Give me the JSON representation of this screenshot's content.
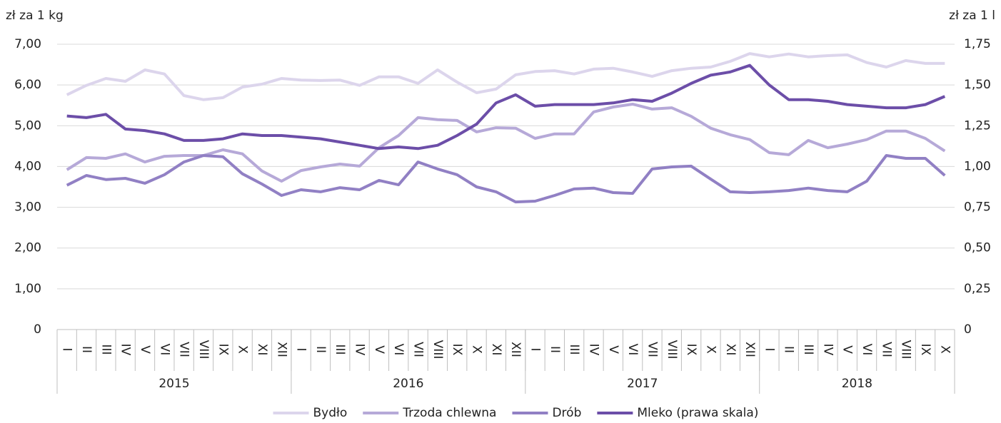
{
  "chart_data": {
    "type": "line",
    "y_label": "zł za 1 kg",
    "y2_label": "zł za 1 l",
    "categories": [
      "I",
      "II",
      "III",
      "IV",
      "V",
      "VI",
      "VII",
      "VIII",
      "IX",
      "X",
      "XI",
      "XII",
      "I",
      "II",
      "III",
      "IV",
      "V",
      "VI",
      "VII",
      "VIII",
      "IX",
      "X",
      "XI",
      "XII",
      "I",
      "II",
      "III",
      "IV",
      "V",
      "VI",
      "VII",
      "VIII",
      "IX",
      "X",
      "XI",
      "XII",
      "I",
      "II",
      "III",
      "IV",
      "V",
      "VI",
      "VII",
      "VIII",
      "IX",
      "X"
    ],
    "groups": [
      {
        "label": "2015",
        "size": 12
      },
      {
        "label": "2016",
        "size": 12
      },
      {
        "label": "2017",
        "size": 12
      },
      {
        "label": "2018",
        "size": 10
      }
    ],
    "ylim": [
      0,
      7
    ],
    "yticks": [
      0,
      {
        "value": 1,
        "label": "1,00"
      },
      {
        "value": 2,
        "label": "2,00"
      },
      {
        "value": 3,
        "label": "3,00"
      },
      {
        "value": 4,
        "label": "4,00"
      },
      {
        "value": 5,
        "label": "5,00"
      },
      {
        "value": 6,
        "label": "6,00"
      },
      {
        "value": 7,
        "label": "7,00"
      }
    ],
    "y2lim": [
      0,
      1.75
    ],
    "y2ticks": [
      0,
      {
        "value": 0.25,
        "label": "0,25"
      },
      {
        "value": 0.5,
        "label": "0,50"
      },
      {
        "value": 0.75,
        "label": "0,75"
      },
      {
        "value": 1,
        "label": "1,00"
      },
      {
        "value": 1.25,
        "label": "1,25"
      },
      {
        "value": 1.5,
        "label": "1,50"
      },
      {
        "value": 1.75,
        "label": "1,75"
      }
    ],
    "grid": true,
    "legend": "bottom",
    "series": [
      {
        "name": "Bydło",
        "color": "#dcd5ec",
        "values": [
          5.76,
          5.99,
          6.16,
          6.09,
          6.37,
          6.27,
          5.74,
          5.64,
          5.69,
          5.95,
          6.02,
          6.16,
          6.12,
          6.11,
          6.12,
          5.99,
          6.2,
          6.2,
          6.04,
          6.37,
          6.07,
          5.81,
          5.9,
          6.25,
          6.33,
          6.35,
          6.27,
          6.39,
          6.41,
          6.32,
          6.21,
          6.35,
          6.41,
          6.44,
          6.58,
          6.77,
          6.69,
          6.76,
          6.69,
          6.72,
          6.74,
          6.55,
          6.44,
          6.6,
          6.53,
          6.53
        ]
      },
      {
        "name": "Trzoda chlewna",
        "color": "#b6a9d8",
        "values": [
          3.92,
          4.22,
          4.2,
          4.31,
          4.11,
          4.25,
          4.27,
          4.27,
          4.41,
          4.31,
          3.89,
          3.64,
          3.9,
          3.99,
          4.06,
          4.01,
          4.46,
          4.76,
          5.2,
          5.15,
          5.13,
          4.85,
          4.95,
          4.94,
          4.69,
          4.8,
          4.8,
          5.34,
          5.46,
          5.53,
          5.41,
          5.44,
          5.23,
          4.94,
          4.78,
          4.66,
          4.34,
          4.29,
          4.64,
          4.46,
          4.55,
          4.66,
          4.87,
          4.87,
          4.69,
          4.38
        ]
      },
      {
        "name": "Drób",
        "color": "#9180c4",
        "values": [
          3.54,
          3.78,
          3.68,
          3.71,
          3.59,
          3.8,
          4.11,
          4.27,
          4.24,
          3.82,
          3.57,
          3.29,
          3.43,
          3.38,
          3.48,
          3.43,
          3.66,
          3.55,
          4.11,
          3.94,
          3.8,
          3.5,
          3.38,
          3.13,
          3.15,
          3.29,
          3.45,
          3.47,
          3.36,
          3.34,
          3.94,
          3.99,
          4.01,
          3.69,
          3.38,
          3.36,
          3.38,
          3.41,
          3.47,
          3.41,
          3.38,
          3.64,
          4.27,
          4.2,
          4.2,
          3.78
        ]
      },
      {
        "name": "Mleko (prawa skala)",
        "color": "#6c4ea8",
        "axis": "y2",
        "values": [
          1.31,
          1.3,
          1.32,
          1.23,
          1.22,
          1.2,
          1.16,
          1.16,
          1.17,
          1.2,
          1.19,
          1.19,
          1.18,
          1.17,
          1.15,
          1.13,
          1.11,
          1.12,
          1.11,
          1.13,
          1.19,
          1.26,
          1.39,
          1.44,
          1.37,
          1.38,
          1.38,
          1.38,
          1.39,
          1.41,
          1.4,
          1.45,
          1.51,
          1.56,
          1.58,
          1.62,
          1.5,
          1.41,
          1.41,
          1.4,
          1.38,
          1.37,
          1.36,
          1.36,
          1.38,
          1.43
        ]
      }
    ]
  }
}
